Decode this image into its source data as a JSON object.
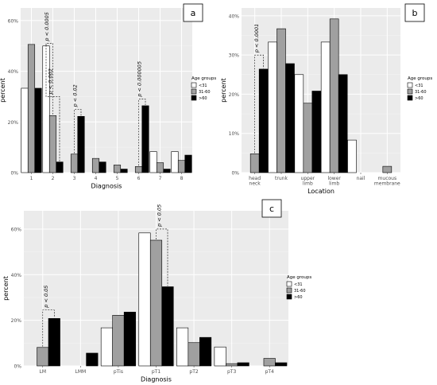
{
  "chart_data": [
    {
      "panel_label": "a",
      "type": "bar",
      "xlabel": "Diagnosis",
      "ylabel": "percent",
      "categories": [
        "1",
        "2",
        "3",
        "4",
        "5",
        "6",
        "7",
        "8"
      ],
      "yticks": [
        "0%",
        "20%",
        "40%",
        "60%"
      ],
      "ylim": [
        0,
        0.65
      ],
      "legend_title": "Age groups",
      "series": [
        {
          "name": "<31",
          "color": "#ffffff",
          "values": [
            0.333,
            0.5,
            0,
            0,
            0,
            0,
            0.083,
            0.083
          ]
        },
        {
          "name": "31-60",
          "color": "#a0a0a0",
          "values": [
            0.506,
            0.225,
            0.073,
            0.056,
            0.03,
            0.024,
            0.039,
            0.048
          ]
        },
        {
          "name": ">60",
          "color": "#000000",
          "values": [
            0.333,
            0.042,
            0.222,
            0.042,
            0.014,
            0.264,
            0.014,
            0.069
          ]
        }
      ],
      "annotations": [
        {
          "text": "p < 0.0005",
          "category": 2
        },
        {
          "text": "p < 0.002",
          "category": 2
        },
        {
          "text": "p < 0.02",
          "category": 3
        },
        {
          "text": "p < 0.000005",
          "category": 6
        }
      ]
    },
    {
      "panel_label": "b",
      "type": "bar",
      "xlabel": "Location",
      "ylabel": "percent",
      "categories": [
        [
          "head",
          "neck"
        ],
        [
          "trunk"
        ],
        [
          "upper",
          "limb"
        ],
        [
          "lower",
          "limb"
        ],
        [
          "nail"
        ],
        [
          "mucous",
          "membrane"
        ]
      ],
      "yticks": [
        "0%",
        "10%",
        "20%",
        "30%",
        "40%"
      ],
      "ylim": [
        0,
        0.42
      ],
      "legend_title": "Age groups",
      "series": [
        {
          "name": "<31",
          "color": "#ffffff",
          "values": [
            0,
            0.333,
            0.25,
            0.333,
            0.083,
            0
          ]
        },
        {
          "name": "31-60",
          "color": "#a0a0a0",
          "values": [
            0.048,
            0.367,
            0.177,
            0.392,
            0,
            0.016
          ]
        },
        {
          "name": ">60",
          "color": "#000000",
          "values": [
            0.264,
            0.278,
            0.208,
            0.25,
            0,
            0
          ]
        }
      ],
      "annotations": [
        {
          "text": "p < 0.0001",
          "category": 1
        }
      ]
    },
    {
      "panel_label": "c",
      "type": "bar",
      "xlabel": "Diagnosis",
      "ylabel": "percent",
      "categories": [
        "LM",
        "LMM",
        "pTis",
        "pT1",
        "pT2",
        "pT3",
        "pT4"
      ],
      "yticks": [
        "0%",
        "20%",
        "40%",
        "60%"
      ],
      "ylim": [
        0,
        0.68
      ],
      "legend_title": "Age groups",
      "series": [
        {
          "name": "<31",
          "color": "#ffffff",
          "values": [
            0,
            0,
            0.167,
            0.583,
            0.167,
            0.083,
            0
          ]
        },
        {
          "name": "31-60",
          "color": "#a0a0a0",
          "values": [
            0.081,
            0,
            0.222,
            0.551,
            0.102,
            0.01,
            0.033
          ]
        },
        {
          "name": ">60",
          "color": "#000000",
          "values": [
            0.208,
            0.056,
            0.236,
            0.347,
            0.125,
            0.014,
            0.014
          ]
        }
      ],
      "annotations": [
        {
          "text": "p < 0.05",
          "category": 1
        },
        {
          "text": "p < 0.05",
          "category": 4
        }
      ]
    }
  ]
}
